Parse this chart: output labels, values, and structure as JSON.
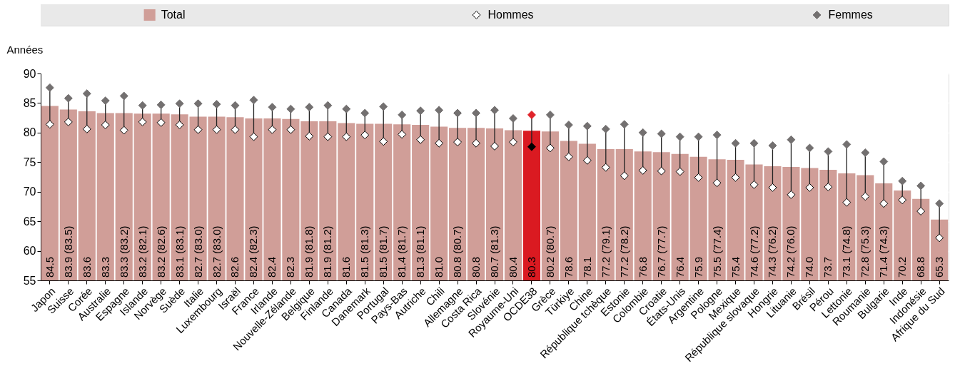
{
  "chart_data": {
    "type": "bar",
    "ylabel": "Années",
    "categories": [
      "Japon",
      "Suisse",
      "Corée",
      "Australie",
      "Espagne",
      "Islande",
      "Norvège",
      "Suède",
      "Italie",
      "Luxembourg",
      "Israël",
      "France",
      "Irlande",
      "Nouvelle-Zélande",
      "Belgique",
      "Finlande",
      "Canada",
      "Danemark",
      "Portugal",
      "Pays-Bas",
      "Autriche",
      "Chili",
      "Allemagne",
      "Costa Rica",
      "Slovénie",
      "Royaume-Uni",
      "OCDE38",
      "Grèce",
      "Türkiye",
      "Chine",
      "République tchèque",
      "Estonie",
      "Colombie",
      "Croatie",
      "États-Unis",
      "Argentine",
      "Pologne",
      "Mexique",
      "République slovaque",
      "Hongrie",
      "Lituanie",
      "Brésil",
      "Pérou",
      "Lettonie",
      "Roumanie",
      "Bulgarie",
      "Inde",
      "Indonésie",
      "Afrique du Sud"
    ],
    "ylim": [
      55,
      90
    ],
    "yticks": [
      55,
      60,
      65,
      70,
      75,
      80,
      85,
      90
    ],
    "grid": true,
    "legend": "top",
    "marker": "diamond",
    "series": [
      {
        "name": "Total",
        "type": "bar",
        "color": "#d09e98",
        "colors": [
          "#d09e98",
          "#d09e98",
          "#d09e98",
          "#d09e98",
          "#d09e98",
          "#d09e98",
          "#d09e98",
          "#d09e98",
          "#d09e98",
          "#d09e98",
          "#d09e98",
          "#d09e98",
          "#d09e98",
          "#d09e98",
          "#d09e98",
          "#d09e98",
          "#d09e98",
          "#d09e98",
          "#d09e98",
          "#d09e98",
          "#d09e98",
          "#d09e98",
          "#d09e98",
          "#d09e98",
          "#d09e98",
          "#d09e98",
          "#da1a21",
          "#d09e98",
          "#d09e98",
          "#d09e98",
          "#d09e98",
          "#d09e98",
          "#d09e98",
          "#d09e98",
          "#d09e98",
          "#d09e98",
          "#d09e98",
          "#d09e98",
          "#d09e98",
          "#d09e98",
          "#d09e98",
          "#d09e98",
          "#d09e98",
          "#d09e98",
          "#d09e98",
          "#d09e98",
          "#d09e98",
          "#d09e98",
          "#d09e98"
        ],
        "values": [
          84.5,
          83.9,
          83.6,
          83.3,
          83.3,
          83.2,
          83.2,
          83.1,
          82.7,
          82.7,
          82.6,
          82.4,
          82.4,
          82.3,
          81.9,
          81.9,
          81.6,
          81.5,
          81.5,
          81.4,
          81.3,
          81.0,
          80.8,
          80.8,
          80.7,
          80.4,
          80.3,
          80.2,
          78.6,
          78.1,
          77.2,
          77.2,
          76.8,
          76.7,
          76.4,
          75.9,
          75.5,
          75.4,
          74.6,
          74.3,
          74.2,
          74.0,
          73.7,
          73.1,
          72.8,
          71.4,
          70.2,
          68.8,
          65.3
        ],
        "value_labels": [
          "84.5",
          "83.9 (83.5)",
          "83.6",
          "83.3",
          "83.3 (83.2)",
          "83.2 (82.1)",
          "83.2 (82.6)",
          "83.1 (83.1)",
          "82.7 (83.0)",
          "82.7 (83.0)",
          "82.6",
          "82.4 (82.3)",
          "82.4",
          "82.3",
          "81.9 (81.8)",
          "81.9 (81.2)",
          "81.6",
          "81.5 (81.3)",
          "81.5 (81.7)",
          "81.4 (81.7)",
          "81.3 (81.1)",
          "81.0",
          "80.8 (80.7)",
          "80.8",
          "80.7 (81.3)",
          "80.4",
          "80.3",
          "80.2 (80.7)",
          "78.6",
          "78.1",
          "77.2 (79.1)",
          "77.2 (78.2)",
          "76.8",
          "76.7 (77.7)",
          "76.4",
          "75.9",
          "75.5 (77.4)",
          "75.4",
          "74.6 (77.2)",
          "74.3 (76.2)",
          "74.2 (76.0)",
          "74.0",
          "73.7",
          "73.1 (74.8)",
          "72.8 (75.3)",
          "71.4 (74.3)",
          "70.2",
          "68.8",
          "65.3"
        ]
      },
      {
        "name": "Hommes",
        "type": "scatter",
        "color": "#ffffff",
        "colors": [
          "#ffffff",
          "#ffffff",
          "#ffffff",
          "#ffffff",
          "#ffffff",
          "#ffffff",
          "#ffffff",
          "#ffffff",
          "#ffffff",
          "#ffffff",
          "#ffffff",
          "#ffffff",
          "#ffffff",
          "#ffffff",
          "#ffffff",
          "#ffffff",
          "#ffffff",
          "#ffffff",
          "#ffffff",
          "#ffffff",
          "#ffffff",
          "#ffffff",
          "#ffffff",
          "#ffffff",
          "#ffffff",
          "#ffffff",
          "#000000",
          "#ffffff",
          "#ffffff",
          "#ffffff",
          "#ffffff",
          "#ffffff",
          "#ffffff",
          "#ffffff",
          "#ffffff",
          "#ffffff",
          "#ffffff",
          "#ffffff",
          "#ffffff",
          "#ffffff",
          "#ffffff",
          "#ffffff",
          "#ffffff",
          "#ffffff",
          "#ffffff",
          "#ffffff",
          "#ffffff",
          "#ffffff",
          "#ffffff"
        ],
        "values": [
          81.4,
          81.8,
          80.6,
          81.3,
          80.4,
          81.8,
          81.7,
          81.3,
          80.5,
          80.5,
          80.5,
          79.3,
          80.5,
          80.5,
          79.4,
          79.3,
          79.3,
          79.6,
          78.5,
          79.7,
          78.8,
          78.2,
          78.4,
          78.2,
          77.7,
          78.4,
          77.6,
          77.4,
          75.9,
          75.3,
          74.1,
          72.7,
          73.6,
          73.5,
          73.4,
          72.4,
          71.5,
          72.4,
          71.2,
          70.7,
          69.5,
          70.7,
          70.8,
          68.2,
          69.2,
          68.0,
          68.6,
          66.7,
          62.2
        ]
      },
      {
        "name": "Femmes",
        "type": "scatter",
        "color": "#737070",
        "colors": [
          "#737070",
          "#737070",
          "#737070",
          "#737070",
          "#737070",
          "#737070",
          "#737070",
          "#737070",
          "#737070",
          "#737070",
          "#737070",
          "#737070",
          "#737070",
          "#737070",
          "#737070",
          "#737070",
          "#737070",
          "#737070",
          "#737070",
          "#737070",
          "#737070",
          "#737070",
          "#737070",
          "#737070",
          "#737070",
          "#737070",
          "#e0242b",
          "#737070",
          "#737070",
          "#737070",
          "#737070",
          "#737070",
          "#737070",
          "#737070",
          "#737070",
          "#737070",
          "#737070",
          "#737070",
          "#737070",
          "#737070",
          "#737070",
          "#737070",
          "#737070",
          "#737070",
          "#737070",
          "#737070",
          "#737070",
          "#737070",
          "#737070"
        ],
        "values": [
          87.6,
          85.8,
          86.6,
          85.4,
          86.2,
          84.6,
          84.7,
          84.9,
          84.9,
          84.8,
          84.6,
          85.5,
          84.3,
          84.0,
          84.3,
          84.6,
          84.0,
          83.3,
          84.4,
          83.0,
          83.7,
          83.8,
          83.3,
          83.3,
          83.8,
          82.4,
          83.0,
          83.0,
          81.3,
          81.1,
          80.6,
          81.4,
          80.0,
          79.8,
          79.3,
          79.3,
          79.6,
          78.2,
          78.2,
          77.8,
          78.8,
          77.4,
          76.8,
          78.0,
          76.6,
          75.1,
          71.8,
          71.0,
          68.0
        ]
      }
    ]
  }
}
